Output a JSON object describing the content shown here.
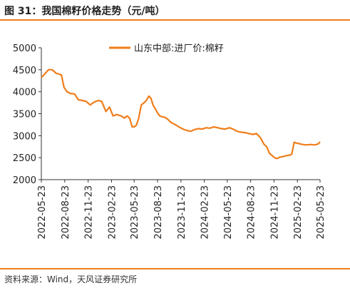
{
  "header": {
    "title": "图 31：我国棉籽价格走势（元/吨）"
  },
  "footer": {
    "source": "资料来源：Wind，天风证券研究所"
  },
  "colors": {
    "accent": "#f07d1a",
    "line": "#f07d1a",
    "axis": "#333333"
  },
  "chart_data": {
    "type": "line",
    "title": "",
    "xlabel": "",
    "ylabel": "",
    "ylim": [
      2000,
      5000
    ],
    "yticks": [
      2000,
      2500,
      3000,
      3500,
      4000,
      4500,
      5000
    ],
    "xlim": [
      "2022-05-23",
      "2025-05-23"
    ],
    "xticks": [
      "2022-05-23",
      "2022-08-23",
      "2022-11-23",
      "2023-02-23",
      "2023-05-23",
      "2023-08-23",
      "2023-11-23",
      "2024-02-23",
      "2024-05-23",
      "2024-08-23",
      "2024-11-23",
      "2025-02-23",
      "2025-05-23"
    ],
    "grid": false,
    "legend_position": "top-center",
    "series": [
      {
        "name": "山东中部:进厂价:棉籽",
        "x": [
          "2022-05-23",
          "2022-06-05",
          "2022-06-20",
          "2022-07-05",
          "2022-07-20",
          "2022-08-01",
          "2022-08-10",
          "2022-08-20",
          "2022-09-01",
          "2022-09-15",
          "2022-10-01",
          "2022-10-15",
          "2022-11-01",
          "2022-11-15",
          "2022-12-01",
          "2022-12-15",
          "2023-01-01",
          "2023-01-15",
          "2023-02-01",
          "2023-02-15",
          "2023-03-01",
          "2023-03-15",
          "2023-04-01",
          "2023-04-15",
          "2023-04-25",
          "2023-05-05",
          "2023-05-15",
          "2023-05-23",
          "2023-06-01",
          "2023-06-10",
          "2023-06-20",
          "2023-07-01",
          "2023-07-10",
          "2023-07-20",
          "2023-07-28",
          "2023-08-05",
          "2023-08-15",
          "2023-08-25",
          "2023-09-01",
          "2023-09-10",
          "2023-09-20",
          "2023-10-01",
          "2023-10-15",
          "2023-11-01",
          "2023-11-15",
          "2023-12-01",
          "2023-12-15",
          "2024-01-01",
          "2024-01-15",
          "2024-02-01",
          "2024-02-15",
          "2024-03-01",
          "2024-03-15",
          "2024-04-01",
          "2024-04-15",
          "2024-05-01",
          "2024-05-15",
          "2024-06-01",
          "2024-06-15",
          "2024-07-01",
          "2024-07-15",
          "2024-08-01",
          "2024-08-15",
          "2024-09-01",
          "2024-09-15",
          "2024-10-01",
          "2024-10-15",
          "2024-10-25",
          "2024-11-05",
          "2024-11-15",
          "2024-11-25",
          "2024-12-05",
          "2024-12-15",
          "2025-01-01",
          "2025-01-15",
          "2025-01-25",
          "2025-02-01",
          "2025-02-10",
          "2025-02-20",
          "2025-03-01",
          "2025-03-15",
          "2025-04-01",
          "2025-04-15",
          "2025-05-01",
          "2025-05-15",
          "2025-05-23"
        ],
        "values": [
          4320,
          4400,
          4500,
          4500,
          4420,
          4400,
          4380,
          4100,
          4000,
          3960,
          3950,
          3820,
          3800,
          3780,
          3700,
          3760,
          3800,
          3780,
          3550,
          3650,
          3450,
          3480,
          3450,
          3400,
          3450,
          3400,
          3200,
          3200,
          3240,
          3400,
          3700,
          3750,
          3800,
          3900,
          3850,
          3700,
          3600,
          3500,
          3450,
          3430,
          3420,
          3380,
          3300,
          3250,
          3200,
          3150,
          3120,
          3100,
          3140,
          3160,
          3150,
          3180,
          3170,
          3200,
          3180,
          3160,
          3150,
          3180,
          3150,
          3100,
          3080,
          3070,
          3050,
          3030,
          3050,
          2950,
          2800,
          2750,
          2600,
          2550,
          2500,
          2480,
          2510,
          2530,
          2550,
          2560,
          2580,
          2850,
          2830,
          2820,
          2800,
          2790,
          2800,
          2790,
          2810,
          2860
        ]
      }
    ]
  }
}
